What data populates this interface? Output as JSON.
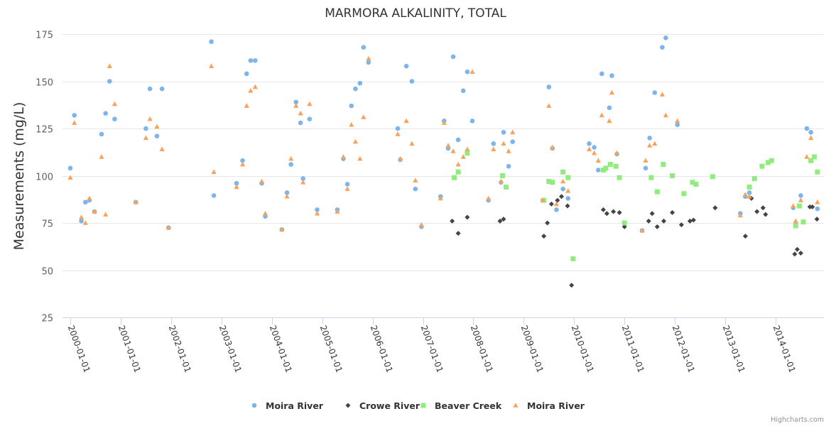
{
  "chart_data": {
    "type": "scatter",
    "title": "MARMORA ALKALINITY, TOTAL",
    "xlabel": "",
    "ylabel": "Measurements (mg/L)",
    "ylim": [
      25,
      175
    ],
    "yticks": [
      25,
      50,
      75,
      100,
      125,
      150,
      175
    ],
    "xlim_years": [
      1999.85,
      2014.95
    ],
    "xticks": [
      "2000-01-01",
      "2001-01-01",
      "2002-01-01",
      "2003-01-01",
      "2004-01-01",
      "2005-01-01",
      "2006-01-01",
      "2007-01-01",
      "2008-01-01",
      "2009-01-01",
      "2010-01-01",
      "2011-01-01",
      "2012-01-01",
      "2013-01-01",
      "2014-01-01"
    ],
    "grid": true,
    "legend_position": "bottom-center",
    "credits": "Highcharts.com",
    "x_units": "decimal year",
    "series": [
      {
        "name": "Moira River",
        "marker": "circle",
        "color": "#7cb5ec",
        "points": [
          [
            2000.0,
            104
          ],
          [
            2000.08,
            132
          ],
          [
            2000.22,
            76
          ],
          [
            2000.3,
            86
          ],
          [
            2000.38,
            87
          ],
          [
            2000.48,
            81
          ],
          [
            2000.62,
            122
          ],
          [
            2000.7,
            133
          ],
          [
            2000.78,
            150
          ],
          [
            2000.88,
            130
          ],
          [
            2001.3,
            86
          ],
          [
            2001.5,
            125
          ],
          [
            2001.58,
            146
          ],
          [
            2001.72,
            121
          ],
          [
            2001.82,
            146
          ],
          [
            2001.95,
            72.5
          ],
          [
            2002.8,
            171
          ],
          [
            2002.85,
            89.5
          ],
          [
            2003.3,
            96
          ],
          [
            2003.42,
            108
          ],
          [
            2003.5,
            154
          ],
          [
            2003.58,
            161
          ],
          [
            2003.67,
            161
          ],
          [
            2003.8,
            96
          ],
          [
            2003.87,
            78.5
          ],
          [
            2004.2,
            71.5
          ],
          [
            2004.3,
            91
          ],
          [
            2004.38,
            106
          ],
          [
            2004.48,
            139
          ],
          [
            2004.57,
            128
          ],
          [
            2004.62,
            98.5
          ],
          [
            2004.75,
            130
          ],
          [
            2004.9,
            82
          ],
          [
            2005.3,
            82
          ],
          [
            2005.42,
            109
          ],
          [
            2005.5,
            95.5
          ],
          [
            2005.58,
            137
          ],
          [
            2005.66,
            146
          ],
          [
            2005.75,
            149
          ],
          [
            2005.82,
            168
          ],
          [
            2005.92,
            160
          ],
          [
            2006.5,
            125
          ],
          [
            2006.55,
            108.5
          ],
          [
            2006.67,
            158
          ],
          [
            2006.78,
            150
          ],
          [
            2006.85,
            93
          ],
          [
            2006.97,
            73
          ],
          [
            2007.35,
            89
          ],
          [
            2007.42,
            129
          ],
          [
            2007.5,
            114.5
          ],
          [
            2007.6,
            163
          ],
          [
            2007.7,
            119
          ],
          [
            2007.8,
            145
          ],
          [
            2007.88,
            155
          ],
          [
            2007.98,
            129
          ],
          [
            2008.3,
            87
          ],
          [
            2008.4,
            117
          ],
          [
            2008.55,
            96.5
          ],
          [
            2008.6,
            123
          ],
          [
            2008.7,
            105
          ],
          [
            2008.78,
            118
          ],
          [
            2009.38,
            87
          ],
          [
            2009.5,
            147
          ],
          [
            2009.57,
            114.5
          ],
          [
            2009.65,
            82
          ],
          [
            2009.78,
            93
          ],
          [
            2009.88,
            88
          ],
          [
            2010.3,
            117
          ],
          [
            2010.4,
            115
          ],
          [
            2010.48,
            103
          ],
          [
            2010.55,
            154
          ],
          [
            2010.7,
            136
          ],
          [
            2010.75,
            153
          ],
          [
            2010.85,
            111.5
          ],
          [
            2011.35,
            71
          ],
          [
            2011.42,
            104
          ],
          [
            2011.5,
            120
          ],
          [
            2011.6,
            144
          ],
          [
            2011.75,
            168
          ],
          [
            2011.82,
            173
          ],
          [
            2012.05,
            127
          ],
          [
            2013.3,
            80
          ],
          [
            2013.4,
            89
          ],
          [
            2013.48,
            91
          ],
          [
            2014.35,
            83
          ],
          [
            2014.4,
            75
          ],
          [
            2014.5,
            89.5
          ],
          [
            2014.62,
            125
          ],
          [
            2014.7,
            123
          ],
          [
            2014.83,
            82.5
          ]
        ]
      },
      {
        "name": "Crowe River",
        "marker": "diamond",
        "color": "#434348",
        "points": [
          [
            2007.58,
            76
          ],
          [
            2007.7,
            69.5
          ],
          [
            2007.88,
            78
          ],
          [
            2008.53,
            76
          ],
          [
            2008.6,
            77
          ],
          [
            2009.4,
            68
          ],
          [
            2009.47,
            75
          ],
          [
            2009.55,
            85
          ],
          [
            2009.67,
            87
          ],
          [
            2009.75,
            89
          ],
          [
            2009.87,
            84
          ],
          [
            2009.95,
            42
          ],
          [
            2010.58,
            82
          ],
          [
            2010.65,
            80
          ],
          [
            2010.78,
            81
          ],
          [
            2010.9,
            80.5
          ],
          [
            2011.0,
            73
          ],
          [
            2011.48,
            76
          ],
          [
            2011.55,
            80
          ],
          [
            2011.65,
            73
          ],
          [
            2011.78,
            76
          ],
          [
            2011.95,
            80.5
          ],
          [
            2012.13,
            74
          ],
          [
            2012.3,
            76
          ],
          [
            2012.37,
            76.5
          ],
          [
            2012.8,
            83
          ],
          [
            2013.4,
            68
          ],
          [
            2013.52,
            88
          ],
          [
            2013.63,
            81
          ],
          [
            2013.75,
            83
          ],
          [
            2013.8,
            79.5
          ],
          [
            2014.38,
            58.5
          ],
          [
            2014.43,
            61
          ],
          [
            2014.5,
            59
          ],
          [
            2014.68,
            83.5
          ],
          [
            2014.73,
            83.5
          ],
          [
            2014.82,
            77
          ]
        ]
      },
      {
        "name": "Beaver Creek",
        "marker": "square",
        "color": "#90ed7d",
        "points": [
          [
            2007.62,
            99
          ],
          [
            2007.7,
            102
          ],
          [
            2007.88,
            112
          ],
          [
            2008.58,
            100
          ],
          [
            2008.65,
            94
          ],
          [
            2009.4,
            87
          ],
          [
            2009.5,
            97
          ],
          [
            2009.57,
            96.5
          ],
          [
            2009.78,
            102
          ],
          [
            2009.88,
            99
          ],
          [
            2009.98,
            56
          ],
          [
            2010.58,
            103
          ],
          [
            2010.63,
            104
          ],
          [
            2010.72,
            106
          ],
          [
            2010.83,
            105
          ],
          [
            2010.9,
            99
          ],
          [
            2011.0,
            75
          ],
          [
            2011.53,
            99
          ],
          [
            2011.65,
            91.5
          ],
          [
            2011.77,
            106
          ],
          [
            2011.95,
            100
          ],
          [
            2012.18,
            90.5
          ],
          [
            2012.35,
            96.5
          ],
          [
            2012.42,
            95.5
          ],
          [
            2012.75,
            99.5
          ],
          [
            2013.48,
            94
          ],
          [
            2013.58,
            98.5
          ],
          [
            2013.73,
            105
          ],
          [
            2013.85,
            107
          ],
          [
            2013.92,
            108
          ],
          [
            2014.4,
            73.5
          ],
          [
            2014.47,
            84
          ],
          [
            2014.55,
            75.5
          ],
          [
            2014.7,
            108
          ],
          [
            2014.77,
            110
          ],
          [
            2014.83,
            102
          ]
        ]
      },
      {
        "name": "Moira River",
        "marker": "triangle",
        "color": "#f7a35c",
        "points": [
          [
            2000.0,
            99
          ],
          [
            2000.08,
            128
          ],
          [
            2000.22,
            78
          ],
          [
            2000.3,
            75
          ],
          [
            2000.38,
            88
          ],
          [
            2000.48,
            81
          ],
          [
            2000.62,
            110
          ],
          [
            2000.7,
            79.5
          ],
          [
            2000.78,
            158
          ],
          [
            2000.88,
            138
          ],
          [
            2001.3,
            86
          ],
          [
            2001.5,
            120
          ],
          [
            2001.58,
            130
          ],
          [
            2001.72,
            126
          ],
          [
            2001.82,
            114
          ],
          [
            2001.95,
            72.5
          ],
          [
            2002.8,
            158
          ],
          [
            2002.85,
            102
          ],
          [
            2003.3,
            94
          ],
          [
            2003.42,
            106
          ],
          [
            2003.5,
            137
          ],
          [
            2003.58,
            145
          ],
          [
            2003.67,
            147
          ],
          [
            2003.8,
            97
          ],
          [
            2003.87,
            80
          ],
          [
            2004.2,
            71.5
          ],
          [
            2004.3,
            89
          ],
          [
            2004.38,
            109
          ],
          [
            2004.48,
            137
          ],
          [
            2004.57,
            133
          ],
          [
            2004.62,
            96.5
          ],
          [
            2004.75,
            138
          ],
          [
            2004.9,
            80
          ],
          [
            2005.3,
            81
          ],
          [
            2005.42,
            110
          ],
          [
            2005.5,
            93
          ],
          [
            2005.58,
            127
          ],
          [
            2005.66,
            118
          ],
          [
            2005.75,
            109
          ],
          [
            2005.82,
            131
          ],
          [
            2005.92,
            162
          ],
          [
            2006.5,
            122
          ],
          [
            2006.55,
            109
          ],
          [
            2006.67,
            129
          ],
          [
            2006.78,
            117
          ],
          [
            2006.85,
            97.5
          ],
          [
            2006.97,
            74
          ],
          [
            2007.35,
            88
          ],
          [
            2007.42,
            128
          ],
          [
            2007.5,
            116
          ],
          [
            2007.6,
            113
          ],
          [
            2007.7,
            106
          ],
          [
            2007.8,
            110
          ],
          [
            2007.88,
            114
          ],
          [
            2007.98,
            155
          ],
          [
            2008.3,
            88
          ],
          [
            2008.4,
            114
          ],
          [
            2008.55,
            97
          ],
          [
            2008.6,
            117
          ],
          [
            2008.7,
            113
          ],
          [
            2008.78,
            123
          ],
          [
            2009.38,
            87
          ],
          [
            2009.5,
            137
          ],
          [
            2009.57,
            115
          ],
          [
            2009.65,
            85
          ],
          [
            2009.78,
            97
          ],
          [
            2009.88,
            92
          ],
          [
            2010.3,
            114
          ],
          [
            2010.4,
            112
          ],
          [
            2010.48,
            108
          ],
          [
            2010.55,
            132
          ],
          [
            2010.7,
            129
          ],
          [
            2010.75,
            144
          ],
          [
            2010.85,
            112
          ],
          [
            2011.35,
            71
          ],
          [
            2011.42,
            108
          ],
          [
            2011.5,
            116
          ],
          [
            2011.6,
            117
          ],
          [
            2011.75,
            143
          ],
          [
            2011.82,
            132
          ],
          [
            2012.05,
            129
          ],
          [
            2013.3,
            79
          ],
          [
            2013.4,
            90
          ],
          [
            2013.48,
            89
          ],
          [
            2014.35,
            84
          ],
          [
            2014.4,
            76
          ],
          [
            2014.5,
            87
          ],
          [
            2014.62,
            110
          ],
          [
            2014.7,
            120
          ],
          [
            2014.83,
            86
          ]
        ]
      }
    ]
  }
}
